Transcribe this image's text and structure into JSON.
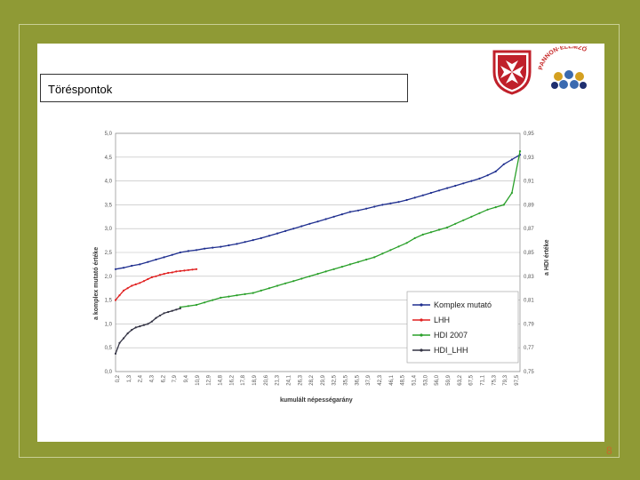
{
  "slide": {
    "title": "Töréspontok",
    "page_number": "8"
  },
  "logos": {
    "shield": "maltese-cross-shield-icon",
    "org_text": "PANNON·ELEMZŐ"
  },
  "colors": {
    "background": "#8f9a35",
    "komplex": "#1f2f8f",
    "lhh": "#e02020",
    "hdi": "#2aa02a",
    "hdi_lhh": "#333344",
    "page_number": "#c96a2a"
  },
  "chart_data": {
    "type": "line",
    "title": "",
    "xlabel": "kumulált népességarány",
    "ylabel_left": "a komplex mutató értéke",
    "ylabel_right": "a HDI értéke",
    "ylim_left": [
      0,
      5
    ],
    "ylim_right": [
      0.75,
      0.95
    ],
    "yticks_left": [
      "0,0",
      "0,5",
      "1,0",
      "1,5",
      "2,0",
      "2,5",
      "3,0",
      "3,5",
      "4,0",
      "4,5",
      "5,0"
    ],
    "yticks_right": [
      "0,75",
      "0,77",
      "0,79",
      "0,81",
      "0,83",
      "0,85",
      "0,87",
      "0,89",
      "0,91",
      "0,93",
      "0,95"
    ],
    "xticks": [
      "0,2",
      "1,3",
      "2,4",
      "4,3",
      "6,2",
      "7,9",
      "9,4",
      "10,9",
      "12,9",
      "14,8",
      "16,2",
      "17,8",
      "18,9",
      "20,6",
      "21,3",
      "24,1",
      "26,3",
      "28,2",
      "29,9",
      "32,5",
      "35,5",
      "36,5",
      "37,9",
      "42,3",
      "46,1",
      "48,5",
      "51,4",
      "53,0",
      "56,0",
      "59,9",
      "63,2",
      "67,5",
      "71,1",
      "75,3",
      "79,3",
      "97,5"
    ],
    "grid": true,
    "legend_position": "bottom-right",
    "series": [
      {
        "name": "Komplex mutató",
        "axis": "left",
        "x": [
          0,
          2,
          4,
          6,
          8,
          10,
          12,
          14,
          16,
          18,
          20,
          22,
          24,
          26,
          28,
          30,
          32,
          34,
          36,
          38,
          40,
          42,
          44,
          46,
          48,
          50,
          52,
          54,
          56,
          58,
          60,
          62,
          64,
          66,
          68,
          70,
          72,
          74,
          76,
          78,
          80,
          82,
          84,
          86,
          88,
          90,
          92,
          94,
          96,
          98,
          100
        ],
        "values": [
          2.15,
          2.18,
          2.22,
          2.25,
          2.3,
          2.35,
          2.4,
          2.45,
          2.5,
          2.53,
          2.55,
          2.58,
          2.6,
          2.62,
          2.65,
          2.68,
          2.72,
          2.76,
          2.8,
          2.85,
          2.9,
          2.95,
          3.0,
          3.05,
          3.1,
          3.15,
          3.2,
          3.25,
          3.3,
          3.35,
          3.38,
          3.42,
          3.46,
          3.5,
          3.53,
          3.56,
          3.6,
          3.65,
          3.7,
          3.75,
          3.8,
          3.85,
          3.9,
          3.95,
          4.0,
          4.05,
          4.12,
          4.2,
          4.35,
          4.45,
          4.55
        ]
      },
      {
        "name": "LHH",
        "axis": "left",
        "x": [
          0,
          1,
          2,
          3,
          4,
          5,
          6,
          7,
          8,
          9,
          10,
          11,
          12,
          13,
          14,
          15,
          16,
          17,
          18,
          19,
          20
        ],
        "values": [
          1.5,
          1.6,
          1.7,
          1.75,
          1.8,
          1.83,
          1.86,
          1.9,
          1.94,
          1.98,
          2.0,
          2.03,
          2.05,
          2.07,
          2.08,
          2.1,
          2.11,
          2.12,
          2.13,
          2.14,
          2.15
        ]
      },
      {
        "name": "HDI 2007",
        "axis": "right",
        "x": [
          16,
          18,
          20,
          22,
          24,
          26,
          28,
          30,
          32,
          34,
          36,
          38,
          40,
          42,
          44,
          46,
          48,
          50,
          52,
          54,
          56,
          58,
          60,
          62,
          64,
          66,
          68,
          70,
          72,
          74,
          76,
          78,
          80,
          82,
          84,
          86,
          88,
          90,
          92,
          94,
          96,
          98,
          100
        ],
        "values": [
          0.804,
          0.805,
          0.806,
          0.808,
          0.81,
          0.812,
          0.813,
          0.814,
          0.815,
          0.816,
          0.818,
          0.82,
          0.822,
          0.824,
          0.826,
          0.828,
          0.83,
          0.832,
          0.834,
          0.836,
          0.838,
          0.84,
          0.842,
          0.844,
          0.846,
          0.849,
          0.852,
          0.855,
          0.858,
          0.862,
          0.865,
          0.867,
          0.869,
          0.871,
          0.874,
          0.877,
          0.88,
          0.883,
          0.886,
          0.888,
          0.89,
          0.9,
          0.935
        ]
      },
      {
        "name": "HDI_LHH",
        "axis": "right",
        "x": [
          0,
          1,
          2,
          3,
          4,
          5,
          6,
          7,
          8,
          9,
          10,
          11,
          12,
          13,
          14,
          15,
          16
        ],
        "values": [
          0.765,
          0.774,
          0.778,
          0.782,
          0.785,
          0.787,
          0.788,
          0.789,
          0.79,
          0.792,
          0.795,
          0.797,
          0.799,
          0.8,
          0.801,
          0.802,
          0.803
        ]
      }
    ]
  }
}
